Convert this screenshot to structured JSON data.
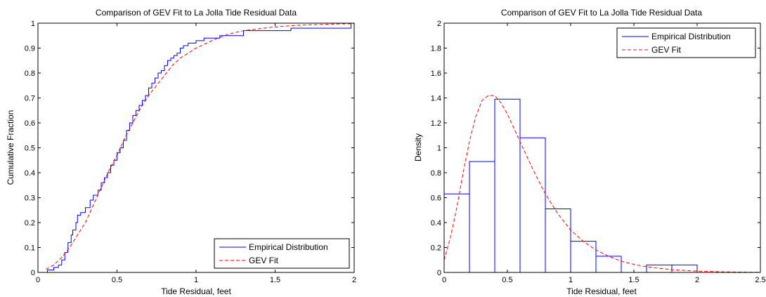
{
  "chart_data": [
    {
      "type": "line",
      "title": "Comparison of GEV Fit to La Jolla Tide Residual Data",
      "xlabel": "Tide Residual, feet",
      "ylabel": "Cumulative Fraction",
      "xlim": [
        0,
        2
      ],
      "ylim": [
        0,
        1
      ],
      "xticks": [
        "0",
        "0.5",
        "1",
        "1.5",
        "2"
      ],
      "yticks": [
        "0",
        "0.1",
        "0.2",
        "0.3",
        "0.4",
        "0.5",
        "0.6",
        "0.7",
        "0.8",
        "0.9",
        "1"
      ],
      "legend_position": "bottom-right",
      "grid": false,
      "series": [
        {
          "name": "Empirical Distribution",
          "style": "stairs",
          "color": "#0000ff",
          "x": [
            0.06,
            0.1,
            0.13,
            0.15,
            0.17,
            0.19,
            0.21,
            0.22,
            0.24,
            0.25,
            0.27,
            0.3,
            0.33,
            0.35,
            0.38,
            0.4,
            0.42,
            0.44,
            0.46,
            0.48,
            0.5,
            0.52,
            0.54,
            0.56,
            0.58,
            0.6,
            0.62,
            0.64,
            0.66,
            0.68,
            0.7,
            0.72,
            0.74,
            0.76,
            0.78,
            0.8,
            0.82,
            0.84,
            0.86,
            0.88,
            0.9,
            0.92,
            0.95,
            1.0,
            1.05,
            1.15,
            1.3,
            1.6,
            1.98,
            2.0
          ],
          "y": [
            0.01,
            0.02,
            0.03,
            0.05,
            0.08,
            0.12,
            0.15,
            0.17,
            0.2,
            0.23,
            0.24,
            0.26,
            0.29,
            0.31,
            0.33,
            0.36,
            0.38,
            0.4,
            0.43,
            0.45,
            0.48,
            0.5,
            0.53,
            0.57,
            0.6,
            0.63,
            0.65,
            0.67,
            0.69,
            0.71,
            0.74,
            0.76,
            0.78,
            0.8,
            0.81,
            0.83,
            0.85,
            0.86,
            0.87,
            0.88,
            0.9,
            0.91,
            0.92,
            0.93,
            0.94,
            0.95,
            0.97,
            0.98,
            1.0,
            1.0
          ]
        },
        {
          "name": "GEV Fit",
          "style": "dashed",
          "color": "#ff0000",
          "x": [
            0.05,
            0.1,
            0.15,
            0.2,
            0.25,
            0.3,
            0.35,
            0.4,
            0.45,
            0.5,
            0.55,
            0.6,
            0.65,
            0.7,
            0.75,
            0.8,
            0.85,
            0.9,
            0.95,
            1.0,
            1.1,
            1.2,
            1.3,
            1.4,
            1.5,
            1.6,
            1.7,
            1.8,
            1.9,
            2.0
          ],
          "y": [
            0.013,
            0.03,
            0.06,
            0.1,
            0.15,
            0.2,
            0.27,
            0.34,
            0.41,
            0.47,
            0.54,
            0.6,
            0.66,
            0.71,
            0.75,
            0.79,
            0.83,
            0.86,
            0.88,
            0.9,
            0.93,
            0.955,
            0.97,
            0.978,
            0.985,
            0.99,
            0.993,
            0.995,
            0.997,
            0.998
          ]
        }
      ]
    },
    {
      "type": "bar",
      "title": "Comparison of GEV Fit to La Jolla Tide Residual Data",
      "xlabel": "Tide Residual, feet",
      "ylabel": "Density",
      "xlim": [
        0,
        2.5
      ],
      "ylim": [
        0,
        2
      ],
      "xticks": [
        "0",
        "0.5",
        "1",
        "1.5",
        "2",
        "2.5"
      ],
      "yticks": [
        "0",
        "0.2",
        "0.4",
        "0.6",
        "0.8",
        "1",
        "1.2",
        "1.4",
        "1.6",
        "1.8",
        "2"
      ],
      "legend_position": "top-right",
      "grid": false,
      "series": [
        {
          "name": "Empirical Distribution",
          "style": "histogram",
          "color": "#0000ff",
          "bin_edges": [
            0,
            0.2,
            0.4,
            0.6,
            0.8,
            1.0,
            1.2,
            1.4,
            1.6,
            1.8,
            2.0
          ],
          "values": [
            0.63,
            0.89,
            1.39,
            1.08,
            0.51,
            0.25,
            0.13,
            0.0,
            0.06,
            0.06
          ]
        },
        {
          "name": "GEV Fit",
          "style": "dashed",
          "color": "#ff0000",
          "x": [
            0.0,
            0.05,
            0.1,
            0.15,
            0.2,
            0.25,
            0.3,
            0.35,
            0.4,
            0.45,
            0.5,
            0.55,
            0.6,
            0.65,
            0.7,
            0.75,
            0.8,
            0.9,
            1.0,
            1.1,
            1.2,
            1.3,
            1.4,
            1.5,
            1.6,
            1.8,
            2.0,
            2.2,
            2.4,
            2.5
          ],
          "y": [
            0.1,
            0.28,
            0.52,
            0.8,
            1.05,
            1.25,
            1.38,
            1.42,
            1.42,
            1.36,
            1.27,
            1.16,
            1.05,
            0.94,
            0.83,
            0.73,
            0.63,
            0.47,
            0.34,
            0.25,
            0.18,
            0.13,
            0.09,
            0.065,
            0.045,
            0.022,
            0.01,
            0.005,
            0.002,
            0.001
          ]
        }
      ]
    }
  ]
}
